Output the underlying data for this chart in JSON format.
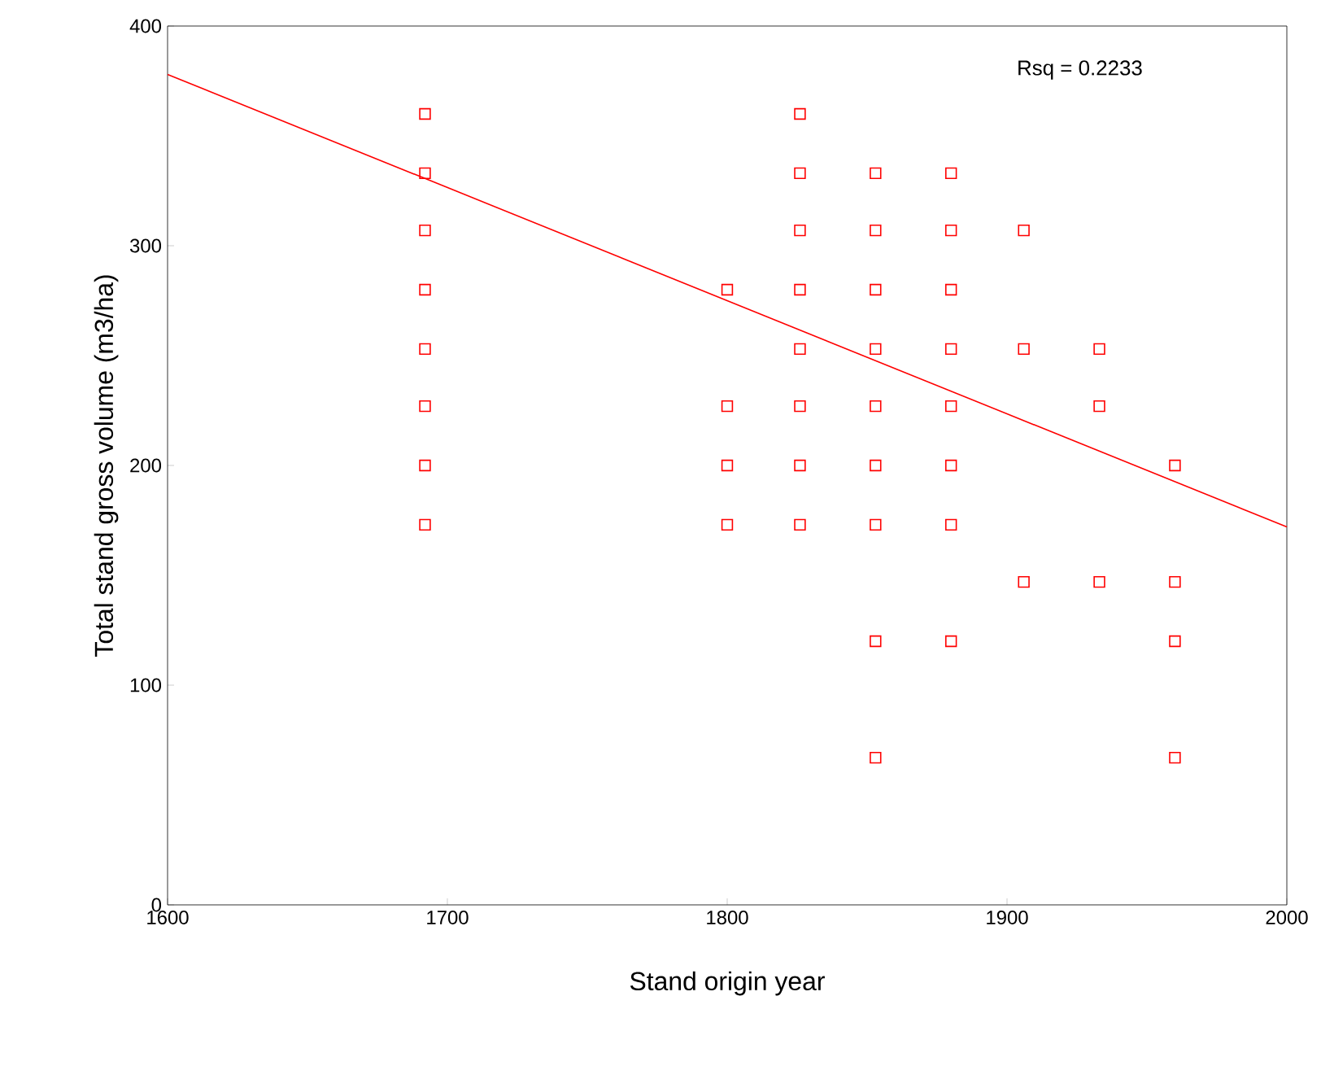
{
  "chart_data": {
    "type": "scatter",
    "xlabel": "Stand origin year",
    "ylabel": "Total stand gross volume (m3/ha)",
    "annotations": [
      "Rsq = 0.2233"
    ],
    "marker": "square",
    "xlim": [
      1600,
      2000
    ],
    "xticks": [
      1600,
      1700,
      1800,
      1900,
      2000
    ],
    "ylim": [
      0,
      400
    ],
    "yticks": [
      0,
      100,
      200,
      300,
      400
    ],
    "series": [
      {
        "color": "#ff0000",
        "x": [
          1692,
          1692,
          1692,
          1692,
          1692,
          1692,
          1692,
          1692,
          1800,
          1800,
          1800,
          1800,
          1826,
          1826,
          1826,
          1826,
          1826,
          1826,
          1826,
          1826,
          1853,
          1853,
          1853,
          1853,
          1853,
          1853,
          1853,
          1853,
          1853,
          1880,
          1880,
          1880,
          1880,
          1880,
          1880,
          1880,
          1880,
          1906,
          1906,
          1906,
          1933,
          1933,
          1933,
          1960,
          1960,
          1960,
          1960
        ],
        "values": [
          360,
          333,
          307,
          280,
          253,
          227,
          200,
          173,
          280,
          227,
          200,
          173,
          360,
          333,
          307,
          280,
          253,
          227,
          200,
          173,
          333,
          307,
          280,
          253,
          227,
          200,
          173,
          120,
          67,
          333,
          307,
          280,
          253,
          227,
          200,
          173,
          120,
          307,
          253,
          147,
          253,
          227,
          147,
          200,
          147,
          120,
          67
        ]
      },
      {
        "type": "line",
        "marker": "none",
        "color": "#ff0000",
        "x": [
          1600,
          2000
        ],
        "values": [
          378,
          172
        ]
      }
    ]
  }
}
